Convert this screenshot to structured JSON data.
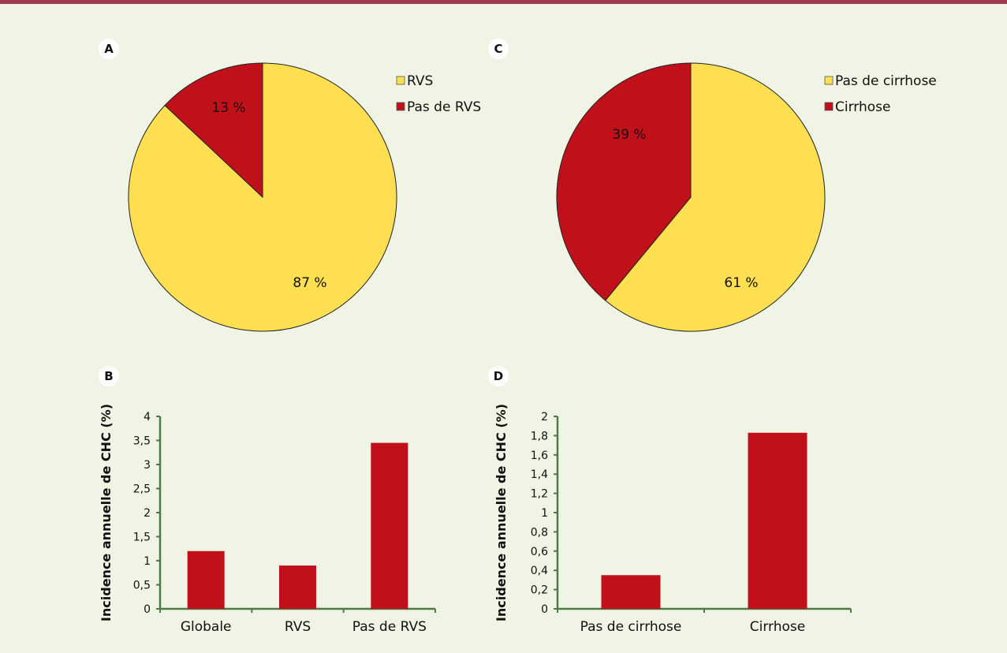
{
  "colors": {
    "yellow": "#fedf52",
    "red": "#c0111a",
    "axis": "#4f7a45",
    "background": "#eff4e4",
    "rule": "#9e3c52"
  },
  "chart_data": [
    {
      "panel": "A",
      "type": "pie",
      "slices": [
        {
          "name": "RVS",
          "value": 87,
          "label": "87 %",
          "color": "#fedf52"
        },
        {
          "name": "Pas de RVS",
          "value": 13,
          "label": "13 %",
          "color": "#c0111a"
        }
      ],
      "legend": [
        "RVS",
        "Pas de RVS"
      ],
      "legend_position": "right"
    },
    {
      "panel": "B",
      "type": "bar",
      "categories": [
        "Globale",
        "RVS",
        "Pas de RVS"
      ],
      "values": [
        1.2,
        0.9,
        3.45
      ],
      "ylabel": "Incidence annuelle de CHC (%)",
      "ylim": [
        0,
        4
      ],
      "yticks": [
        "0",
        "0,5",
        "1",
        "1,5",
        "2",
        "2,5",
        "3",
        "3,5",
        "4"
      ],
      "color": "#c0111a",
      "grid": false
    },
    {
      "panel": "C",
      "type": "pie",
      "slices": [
        {
          "name": "Pas de cirrhose",
          "value": 61,
          "label": "61 %",
          "color": "#fedf52"
        },
        {
          "name": "Cirrhose",
          "value": 39,
          "label": "39 %",
          "color": "#c0111a"
        }
      ],
      "legend": [
        "Pas de cirrhose",
        "Cirrhose"
      ],
      "legend_position": "right"
    },
    {
      "panel": "D",
      "type": "bar",
      "categories": [
        "Pas de cirrhose",
        "Cirrhose"
      ],
      "values": [
        0.35,
        1.83
      ],
      "ylabel": "Incidence annuelle de CHC (%)",
      "ylim": [
        0,
        2
      ],
      "yticks": [
        "0",
        "0,2",
        "0,4",
        "0,6",
        "0,8",
        "1",
        "1,2",
        "1,4",
        "1,6",
        "1,8",
        "2"
      ],
      "color": "#c0111a",
      "grid": false
    }
  ]
}
